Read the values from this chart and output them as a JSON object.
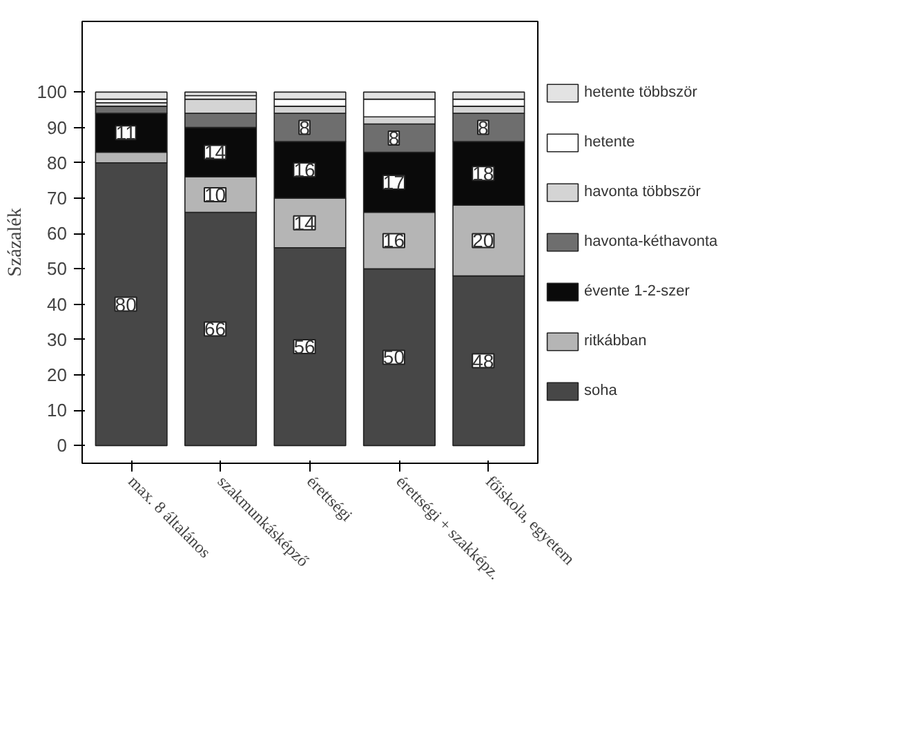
{
  "chart_data": {
    "type": "bar",
    "stacked": true,
    "ylabel": "Százalék",
    "categories": [
      "max. 8 általános",
      "szakmunkásképző",
      "érettségi",
      "érettségi + szakképz.",
      "főiskola, egyetem"
    ],
    "ylim": [
      -5,
      120
    ],
    "yticks": [
      0,
      10,
      20,
      30,
      40,
      50,
      60,
      70,
      80,
      90,
      100
    ],
    "grid": false,
    "legend": "right",
    "series": [
      {
        "name": "soha",
        "color": "#474747",
        "values": [
          80,
          66,
          56,
          50,
          48
        ],
        "value_labels": [
          "80",
          "66",
          "56",
          "50",
          "48"
        ]
      },
      {
        "name": "ritkábban",
        "color": "#b5b5b5",
        "values": [
          3,
          10,
          14,
          16,
          20
        ],
        "value_labels": [
          null,
          "10",
          "14",
          "16",
          "20"
        ]
      },
      {
        "name": "évente 1-2-szer",
        "color": "#0a0a0a",
        "values": [
          11,
          14,
          16,
          17,
          18
        ],
        "value_labels": [
          "11",
          "14",
          "16",
          "17",
          "18"
        ]
      },
      {
        "name": "havonta-kéthavonta",
        "color": "#6e6e6e",
        "values": [
          2,
          4,
          8,
          8,
          8
        ],
        "value_labels": [
          null,
          null,
          "8",
          "8",
          "8"
        ]
      },
      {
        "name": "havonta többször",
        "color": "#d4d4d4",
        "values": [
          1,
          4,
          2,
          2,
          2
        ]
      },
      {
        "name": "hetente",
        "color": "#ffffff",
        "values": [
          1,
          1,
          2,
          5,
          2
        ]
      },
      {
        "name": "hetente többször",
        "color": "#e3e3e3",
        "values": [
          2,
          1,
          2,
          2,
          2
        ]
      }
    ]
  }
}
